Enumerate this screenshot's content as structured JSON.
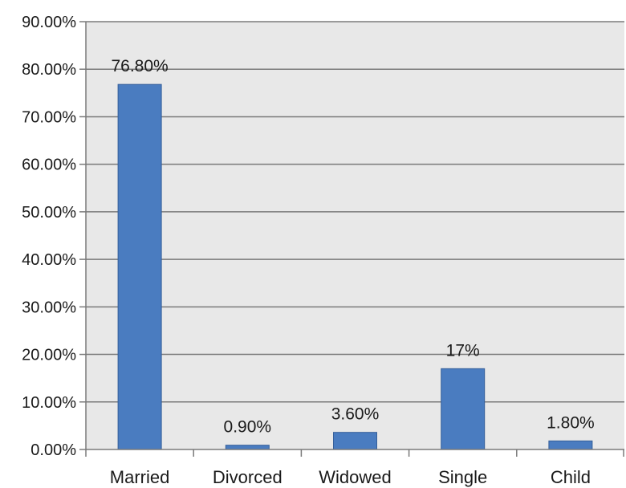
{
  "chart_data": {
    "type": "bar",
    "title": "",
    "xlabel": "",
    "ylabel": "",
    "categories": [
      "Married",
      "Divorced",
      "Widowed",
      "Single",
      "Child"
    ],
    "values": [
      76.8,
      0.9,
      3.6,
      17,
      1.8
    ],
    "data_labels": [
      "76.80%",
      "0.90%",
      "3.60%",
      "17%",
      "1.80%"
    ],
    "ylim": [
      0,
      90
    ],
    "yticks": [
      0,
      10,
      20,
      30,
      40,
      50,
      60,
      70,
      80,
      90
    ],
    "ytick_labels": [
      "0.00%",
      "10.00%",
      "20.00%",
      "30.00%",
      "40.00%",
      "50.00%",
      "60.00%",
      "70.00%",
      "80.00%",
      "90.00%"
    ],
    "grid": true,
    "legend": "none",
    "colors": {
      "bar": "#4a7cc0",
      "bar_edge": "#355f9a",
      "plot_background": "#e8e8e8",
      "grid": "#7a7a7a",
      "axis": "#7a7a7a"
    }
  }
}
